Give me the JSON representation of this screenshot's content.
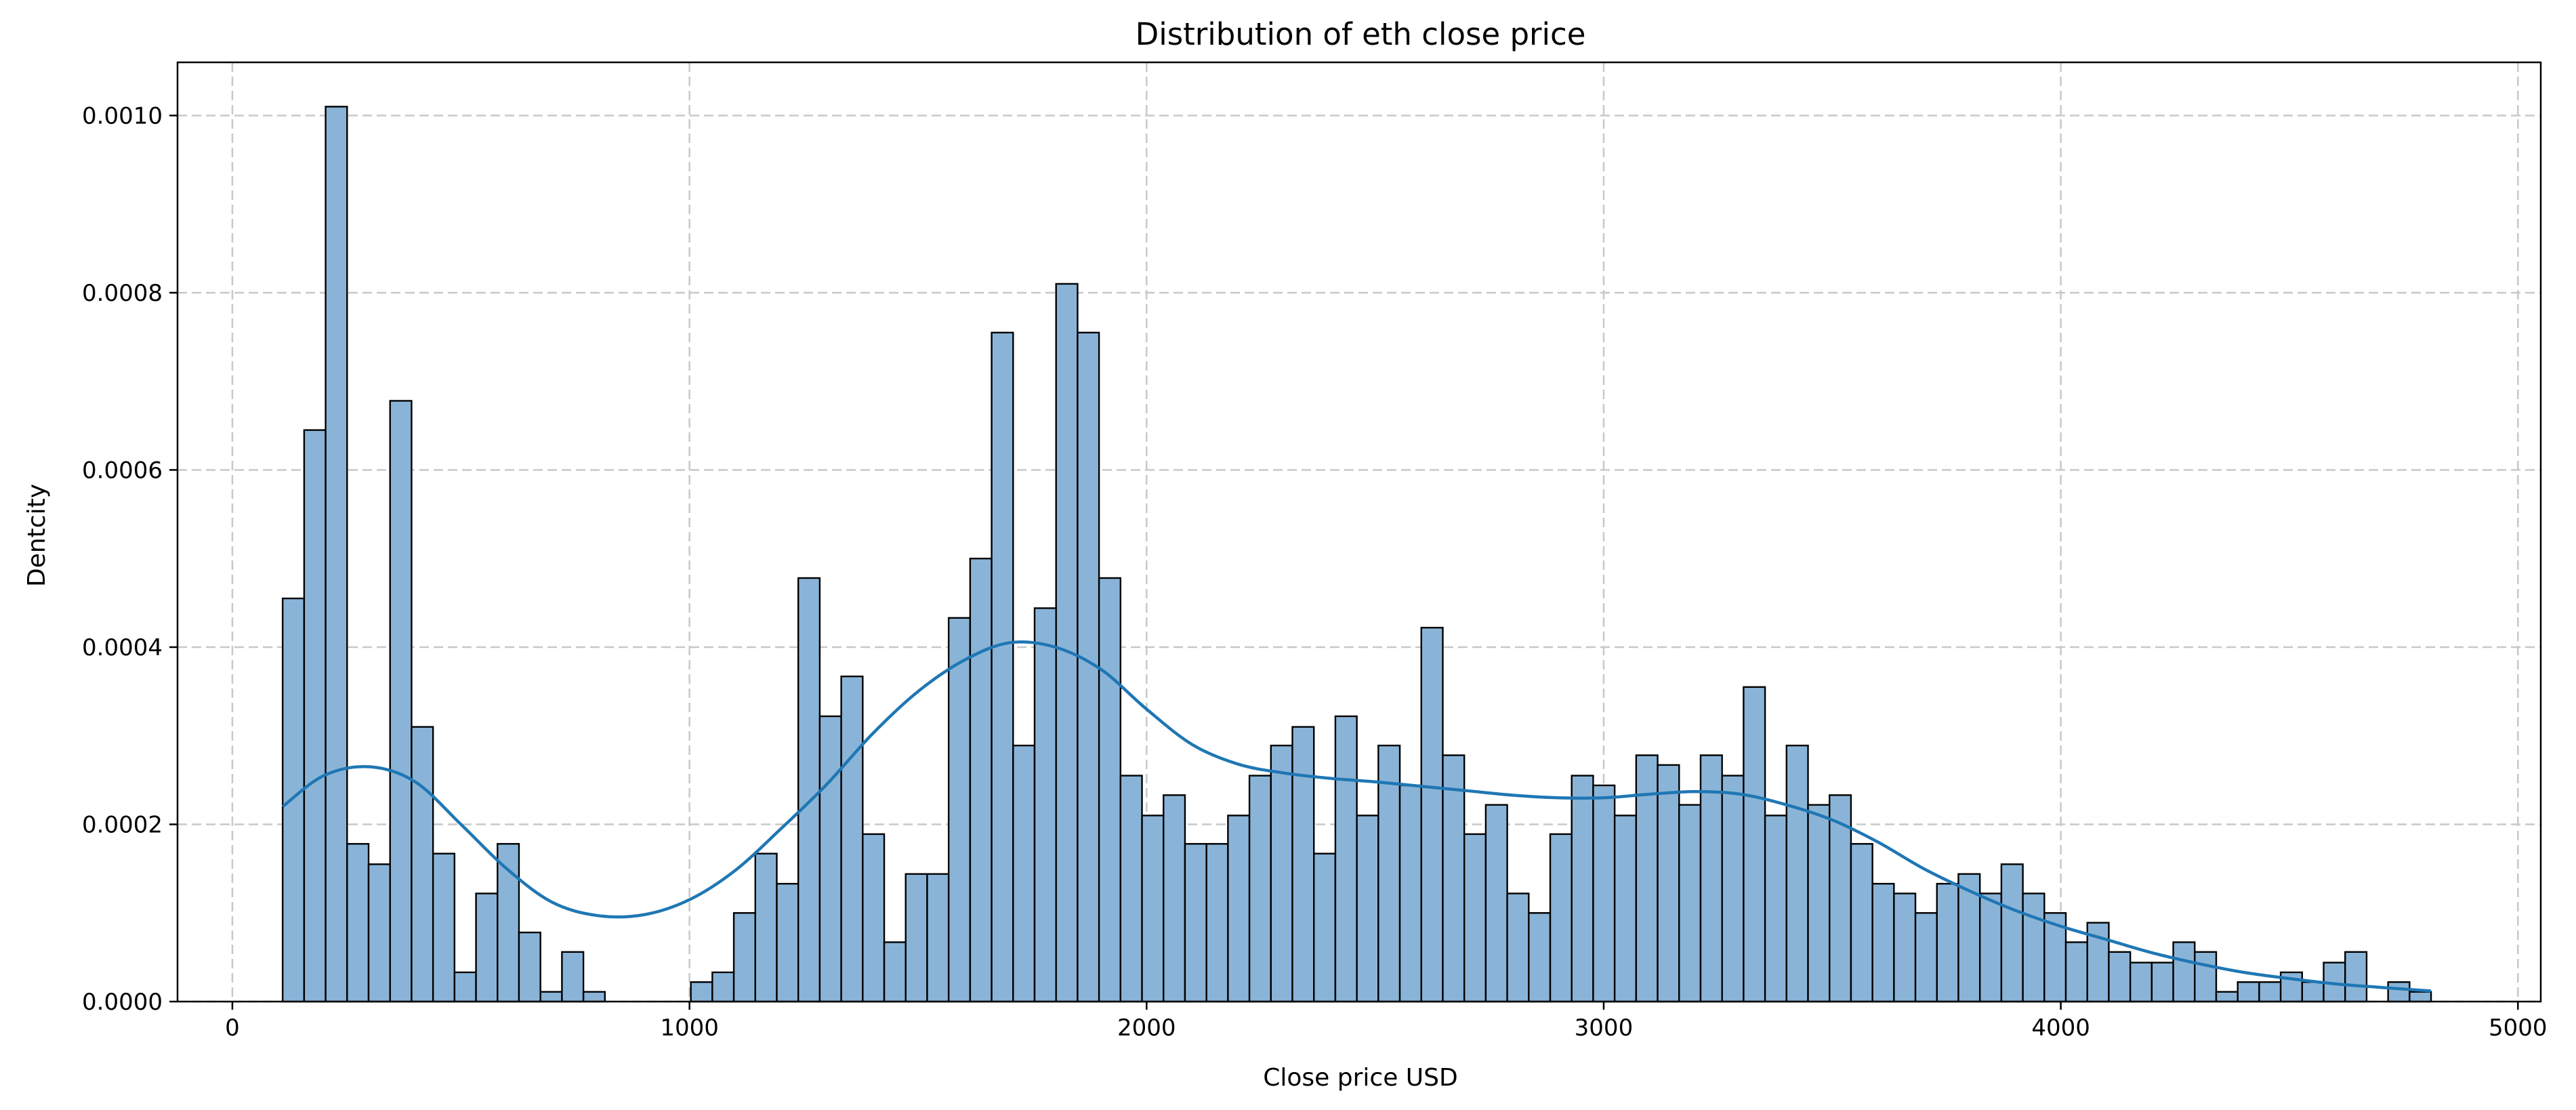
{
  "chart_data": {
    "type": "bar",
    "title": "Distribution of eth close price",
    "xlabel": "Close price USD",
    "ylabel": "Dentcity",
    "xlim": [
      -120,
      5050
    ],
    "ylim": [
      0,
      0.00106
    ],
    "xticks": [
      0,
      1000,
      2000,
      3000,
      4000,
      5000
    ],
    "xtick_labels": [
      "0",
      "1000",
      "2000",
      "3000",
      "4000",
      "5000"
    ],
    "yticks": [
      0,
      0.0002,
      0.0004,
      0.0006,
      0.0008,
      0.001
    ],
    "ytick_labels": [
      "0.0000",
      "0.0002",
      "0.0004",
      "0.0006",
      "0.0008",
      "0.0010"
    ],
    "grid": true,
    "bar_color": "#8ab4d7",
    "kde_color": "#1f77b4",
    "bin_start": 110,
    "bin_width": 47,
    "values": [
      0.000455,
      0.000645,
      0.00101,
      0.000178,
      0.000155,
      0.000678,
      0.00031,
      0.000167,
      3.3e-05,
      0.000122,
      0.000178,
      7.8e-05,
      1.1e-05,
      5.6e-05,
      1.1e-05,
      0,
      0,
      0,
      0,
      2.2e-05,
      3.3e-05,
      0.0001,
      0.000167,
      0.000133,
      0.000478,
      0.000322,
      0.000367,
      0.000189,
      6.7e-05,
      0.000144,
      0.000144,
      0.000433,
      0.0005,
      0.000755,
      0.000289,
      0.000444,
      0.00081,
      0.000755,
      0.000478,
      0.000255,
      0.00021,
      0.000233,
      0.000178,
      0.000178,
      0.00021,
      0.000255,
      0.000289,
      0.00031,
      0.000167,
      0.000322,
      0.00021,
      0.000289,
      0.000244,
      0.000422,
      0.000278,
      0.000189,
      0.000222,
      0.000122,
      0.0001,
      0.000189,
      0.000255,
      0.000244,
      0.00021,
      0.000278,
      0.000267,
      0.000222,
      0.000278,
      0.000255,
      0.000355,
      0.00021,
      0.000289,
      0.000222,
      0.000233,
      0.000178,
      0.000133,
      0.000122,
      0.0001,
      0.000133,
      0.000144,
      0.000122,
      0.000155,
      0.000122,
      0.0001,
      6.7e-05,
      8.9e-05,
      5.6e-05,
      4.4e-05,
      4.4e-05,
      6.7e-05,
      5.6e-05,
      1.1e-05,
      2.2e-05,
      2.2e-05,
      3.3e-05,
      2.2e-05,
      4.4e-05,
      5.6e-05,
      0,
      2.2e-05,
      1.1e-05
    ],
    "kde": {
      "x": [
        110,
        200,
        300,
        400,
        500,
        600,
        700,
        800,
        900,
        1000,
        1100,
        1200,
        1300,
        1400,
        1500,
        1600,
        1700,
        1800,
        1900,
        2000,
        2100,
        2200,
        2300,
        2400,
        2500,
        2600,
        2700,
        2800,
        2900,
        3000,
        3100,
        3200,
        3300,
        3400,
        3500,
        3600,
        3700,
        3800,
        3900,
        4000,
        4100,
        4200,
        4300,
        4400,
        4500,
        4600,
        4700,
        4810
      ],
      "y": [
        0.00022,
        0.000255,
        0.000265,
        0.000248,
        0.0002,
        0.00015,
        0.000112,
        9.7e-05,
        9.8e-05,
        0.000115,
        0.000148,
        0.000195,
        0.000245,
        0.000302,
        0.00035,
        0.000385,
        0.000405,
        0.0004,
        0.000375,
        0.00033,
        0.00029,
        0.000268,
        0.000258,
        0.000252,
        0.000248,
        0.000243,
        0.000238,
        0.000233,
        0.00023,
        0.00023,
        0.000234,
        0.000237,
        0.000234,
        0.000222,
        0.000205,
        0.00018,
        0.00015,
        0.000125,
        0.000103,
        8.5e-05,
        7e-05,
        5.5e-05,
        4.3e-05,
        3.3e-05,
        2.6e-05,
        2e-05,
        1.6e-05,
        1.2e-05
      ]
    }
  }
}
